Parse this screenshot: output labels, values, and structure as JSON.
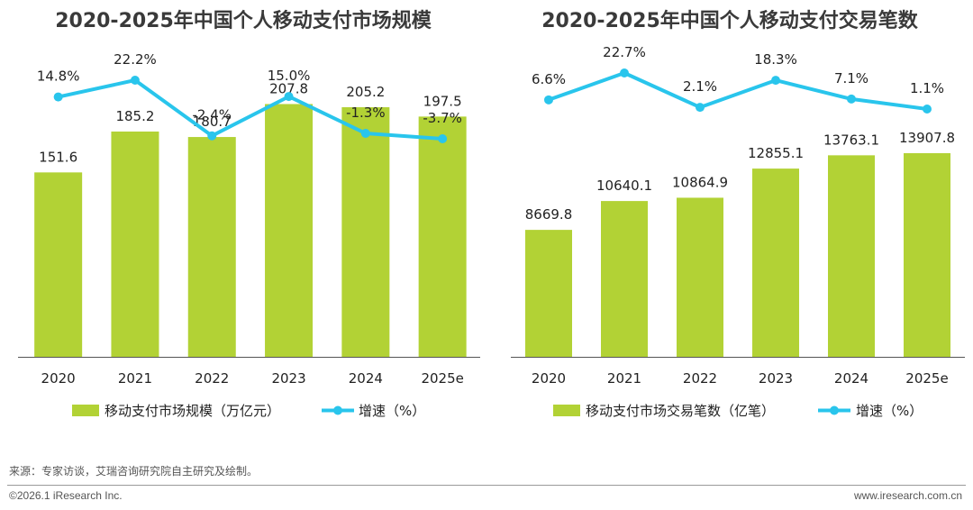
{
  "colors": {
    "bar": "#b2d235",
    "line": "#29c5ec",
    "axis": "#555555"
  },
  "chart_data": [
    {
      "type": "bar",
      "title": "2020-2025年中国个人移动支付市场规模",
      "categories": [
        "2020",
        "2021",
        "2022",
        "2023",
        "2024",
        "2025e"
      ],
      "series": [
        {
          "name": "移动支付市场规模（万亿元）",
          "kind": "bar",
          "values": [
            151.6,
            185.2,
            180.7,
            207.8,
            205.2,
            197.5
          ],
          "labels": [
            "151.6",
            "185.2",
            "180.7",
            "207.8",
            "205.2",
            "197.5"
          ]
        },
        {
          "name": "增速（%）",
          "kind": "line",
          "values": [
            14.8,
            22.2,
            -2.4,
            15.0,
            -1.3,
            -3.7
          ],
          "labels": [
            "14.8%",
            "22.2%",
            "-2.4%",
            "15.0%",
            "-1.3%",
            "-3.7%"
          ]
        }
      ],
      "xlabel": "",
      "ylabel": "",
      "legend": [
        "移动支付市场规模（万亿元）",
        "增速（%）"
      ]
    },
    {
      "type": "bar",
      "title": "2020-2025年中国个人移动支付交易笔数",
      "categories": [
        "2020",
        "2021",
        "2022",
        "2023",
        "2024",
        "2025e"
      ],
      "series": [
        {
          "name": "移动支付市场交易笔数（亿笔）",
          "kind": "bar",
          "values": [
            8669.8,
            10640.1,
            10864.9,
            12855.1,
            13763.1,
            13907.8
          ],
          "labels": [
            "8669.8",
            "10640.1",
            "10864.9",
            "12855.1",
            "13763.1",
            "13907.8"
          ]
        },
        {
          "name": "增速（%）",
          "kind": "line",
          "values": [
            6.6,
            22.7,
            2.1,
            18.3,
            7.1,
            1.1
          ],
          "labels": [
            "6.6%",
            "22.7%",
            "2.1%",
            "18.3%",
            "7.1%",
            "1.1%"
          ]
        }
      ],
      "xlabel": "",
      "ylabel": "",
      "legend": [
        "移动支付市场交易笔数（亿笔）",
        "增速（%）"
      ]
    }
  ],
  "footer": {
    "source": "来源：专家访谈，艾瑞咨询研究院自主研究及绘制。",
    "copyright": "©2026.1 iResearch Inc.",
    "url": "www.iresearch.com.cn"
  }
}
